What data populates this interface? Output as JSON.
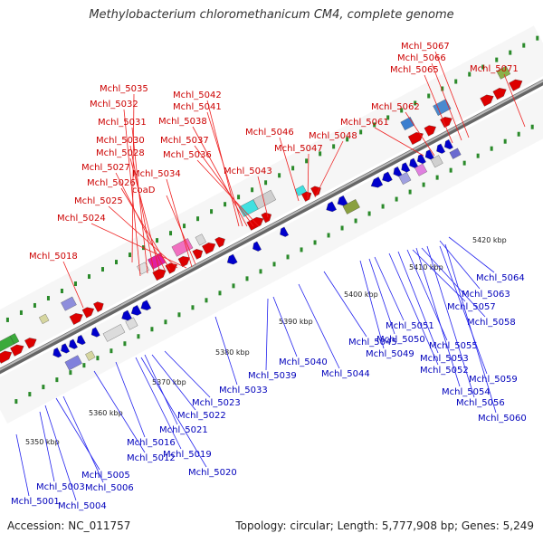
{
  "title": "Methylobacterium chloromethanicum CM4, complete genome",
  "footer": {
    "accession": "Accession: NC_011757",
    "summary": "Topology: circular; Length: 5,777,908 bp; Genes: 5,249"
  },
  "colors": {
    "forward": "#dd0000",
    "reverse": "#0000cc",
    "backbone": "#888888",
    "tick": "#2a8a2a"
  },
  "top_labels": [
    "Mchl_5035",
    "Mchl_5032",
    "Mchl_5031",
    "Mchl_5030",
    "Mchl_5028",
    "Mchl_5027",
    "Mchl_5026",
    "Mchl_5025",
    "Mchl_5024",
    "Mchl_5018",
    "Mchl_5034",
    "coaD",
    "Mchl_5042",
    "Mchl_5041",
    "Mchl_5038",
    "Mchl_5037",
    "Mchl_5036",
    "Mchl_5043",
    "Mchl_5046",
    "Mchl_5047",
    "Mchl_5048",
    "Mchl_5061",
    "Mchl_5062",
    "Mchl_5065",
    "Mchl_5066",
    "Mchl_5067",
    "Mchl_5071"
  ],
  "bottom_labels": [
    "Mchl_5001",
    "Mchl_5003",
    "Mchl_5004",
    "Mchl_5005",
    "Mchl_5006",
    "Mchl_5012",
    "Mchl_5016",
    "Mchl_5019",
    "Mchl_5020",
    "Mchl_5021",
    "Mchl_5022",
    "Mchl_5023",
    "Mchl_5033",
    "Mchl_5039",
    "Mchl_5040",
    "Mchl_5044",
    "Mchl_5045",
    "Mchl_5049",
    "Mchl_5050",
    "Mchl_5051",
    "Mchl_5052",
    "Mchl_5053",
    "Mchl_5054",
    "Mchl_5055",
    "Mchl_5056",
    "Mchl_5057",
    "Mchl_5058",
    "Mchl_5059",
    "Mchl_5060",
    "Mchl_5063",
    "Mchl_5064"
  ],
  "kbp_labels": [
    "5350 kbp",
    "5360 kbp",
    "5370 kbp",
    "5380 kbp",
    "5390 kbp",
    "5400 kbp",
    "5410 kbp",
    "5420 kbp"
  ]
}
